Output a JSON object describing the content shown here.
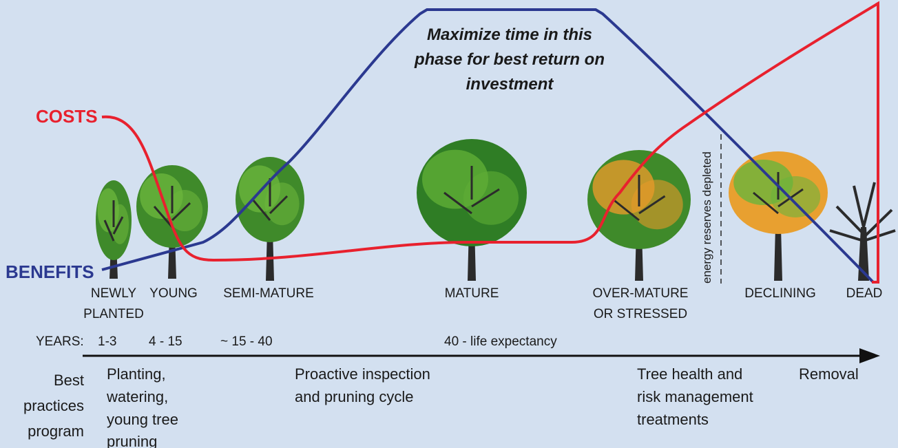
{
  "costs_label": "COSTS",
  "benefits_label": "BENEFITS",
  "annotation": [
    "Maximize time in this",
    "phase for best return on",
    "investment"
  ],
  "energy_note": "energy reserves depleted",
  "stages": [
    {
      "label": [
        "NEWLY",
        "PLANTED"
      ]
    },
    {
      "label": [
        "YOUNG"
      ]
    },
    {
      "label": [
        "SEMI-MATURE"
      ]
    },
    {
      "label": [
        "MATURE"
      ]
    },
    {
      "label": [
        "OVER-MATURE",
        "OR STRESSED"
      ]
    },
    {
      "label": [
        "DECLINING"
      ]
    },
    {
      "label": [
        "DEAD"
      ]
    }
  ],
  "years": {
    "label": "YEARS:",
    "ranges": [
      "1-3",
      "4 - 15",
      "~ 15 - 40",
      "40 - life expectancy"
    ]
  },
  "program": {
    "label": [
      "Best",
      "practices",
      "program"
    ],
    "items": [
      [
        "Planting,",
        "watering,",
        "young tree",
        "pruning"
      ],
      [
        "Proactive inspection",
        "and pruning cycle"
      ],
      [
        "Tree health and",
        "risk management",
        "treatments"
      ],
      [
        "Removal"
      ]
    ]
  }
}
